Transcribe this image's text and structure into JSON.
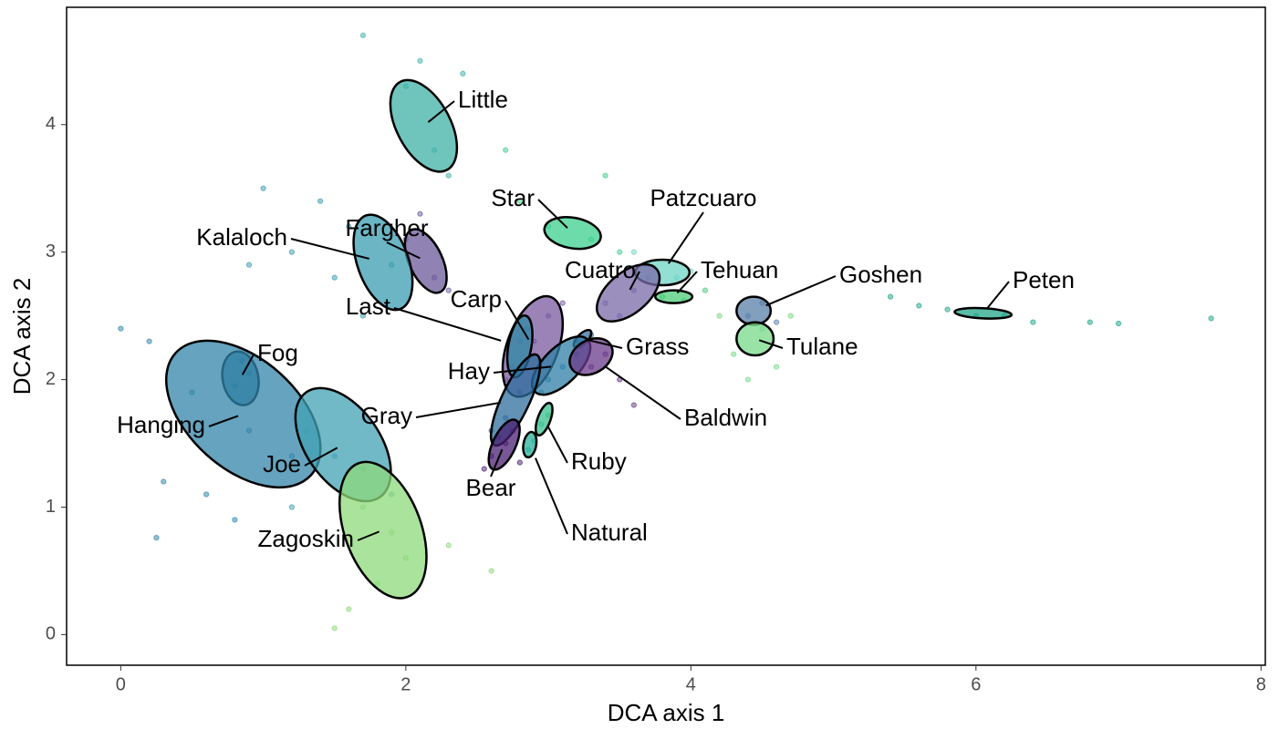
{
  "chart_data": {
    "type": "scatter",
    "xlabel": "DCA axis 1",
    "ylabel": "DCA axis 2",
    "xlim": [
      -0.38,
      8.03
    ],
    "ylim": [
      -0.24,
      4.92
    ],
    "xticks": [
      0,
      2,
      4,
      6,
      8
    ],
    "yticks": [
      0,
      1,
      2,
      3,
      4
    ],
    "grid": false,
    "groups": [
      {
        "name": "Little",
        "color": "#3fb2a6",
        "ellipse": {
          "x": 2.125,
          "y": 3.99,
          "rx": 0.35,
          "ry": 0.21,
          "angle": 62
        },
        "x": [
          2.0,
          2.2,
          2.1,
          2.4,
          1.7,
          2.3
        ],
        "y": [
          4.3,
          3.8,
          4.5,
          4.4,
          4.7,
          3.6
        ]
      },
      {
        "name": "Fargher",
        "color": "#6b5a9a",
        "ellipse": {
          "x": 2.14,
          "y": 2.93,
          "rx": 0.24,
          "ry": 0.13,
          "angle": 65
        },
        "x": [
          2.0,
          2.2,
          2.3,
          2.1
        ],
        "y": [
          3.1,
          2.8,
          2.7,
          3.3
        ]
      },
      {
        "name": "Kalaloch",
        "color": "#3a9cb0",
        "ellipse": {
          "x": 1.84,
          "y": 2.92,
          "rx": 0.35,
          "ry": 0.2,
          "angle": 70
        },
        "x": [
          1.4,
          1.6,
          1.9,
          1.2,
          1.7,
          1.5,
          0.9,
          1.0
        ],
        "y": [
          3.4,
          3.2,
          2.9,
          3.0,
          2.5,
          2.8,
          2.9,
          3.5
        ]
      },
      {
        "name": "Star",
        "color": "#3ccf8e",
        "ellipse": {
          "x": 3.17,
          "y": 3.15,
          "rx": 0.2,
          "ry": 0.12,
          "angle": 10
        },
        "x": [
          2.8,
          3.0,
          3.3,
          3.5,
          2.7,
          3.4
        ],
        "y": [
          3.4,
          3.2,
          3.1,
          3.0,
          3.8,
          3.6
        ]
      },
      {
        "name": "Patzcuaro",
        "color": "#6ed4c4",
        "ellipse": {
          "x": 3.8,
          "y": 2.84,
          "rx": 0.19,
          "ry": 0.1,
          "angle": 0
        },
        "x": [
          3.7,
          3.9,
          3.6,
          4.0
        ],
        "y": [
          2.9,
          2.8,
          3.0,
          2.85
        ]
      },
      {
        "name": "Tehuan",
        "color": "#4ccc7a",
        "ellipse": {
          "x": 3.88,
          "y": 2.65,
          "rx": 0.13,
          "ry": 0.05,
          "angle": 0
        },
        "x": [
          3.8,
          3.95,
          4.1
        ],
        "y": [
          2.65,
          2.62,
          2.7
        ]
      },
      {
        "name": "Cuatro",
        "color": "#7a6aa8",
        "ellipse": {
          "x": 3.56,
          "y": 2.68,
          "rx": 0.26,
          "ry": 0.16,
          "angle": -40
        },
        "x": [
          3.4,
          3.6,
          3.7,
          3.5
        ],
        "y": [
          2.6,
          2.7,
          2.8,
          2.5
        ]
      },
      {
        "name": "Goshen",
        "color": "#5a7fa8",
        "ellipse": {
          "x": 4.44,
          "y": 2.54,
          "rx": 0.12,
          "ry": 0.11,
          "angle": 0
        },
        "x": [
          4.4,
          4.5,
          4.6
        ],
        "y": [
          2.5,
          2.6,
          2.45
        ]
      },
      {
        "name": "Tulane",
        "color": "#78d98a",
        "ellipse": {
          "x": 4.45,
          "y": 2.32,
          "rx": 0.13,
          "ry": 0.13,
          "angle": 0
        },
        "x": [
          4.3,
          4.5,
          4.6,
          4.4,
          4.7,
          4.2
        ],
        "y": [
          2.2,
          2.4,
          2.1,
          2.0,
          2.5,
          2.5
        ]
      },
      {
        "name": "Peten",
        "color": "#22a587",
        "ellipse": {
          "x": 6.05,
          "y": 2.52,
          "rx": 0.2,
          "ry": 0.04,
          "angle": 3
        },
        "x": [
          5.6,
          5.8,
          6.0,
          6.2,
          6.4,
          6.8,
          7.0,
          7.65,
          5.4
        ],
        "y": [
          2.58,
          2.55,
          2.5,
          2.5,
          2.45,
          2.45,
          2.44,
          2.48,
          2.65
        ]
      },
      {
        "name": "Carp",
        "color": "#7a5aa0",
        "ellipse": {
          "x": 2.89,
          "y": 2.26,
          "rx": 0.37,
          "ry": 0.2,
          "angle": -70
        },
        "x": [
          2.7,
          2.9,
          3.0,
          2.8,
          3.1
        ],
        "y": [
          2.0,
          2.3,
          2.5,
          1.9,
          2.6
        ]
      },
      {
        "name": "Last",
        "color": "#2f8aa6",
        "ellipse": {
          "x": 2.8,
          "y": 2.26,
          "rx": 0.22,
          "ry": 0.09,
          "angle": -80
        },
        "x": [
          2.75,
          2.8,
          2.85
        ],
        "y": [
          2.1,
          2.3,
          2.4
        ]
      },
      {
        "name": "Grass",
        "color": "#3a6fa0",
        "ellipse": {
          "x": 3.24,
          "y": 2.32,
          "rx": 0.08,
          "ry": 0.04,
          "angle": -45
        },
        "x": [
          3.2,
          3.3
        ],
        "y": [
          2.3,
          2.35
        ]
      },
      {
        "name": "Hay",
        "color": "#2f7fa6",
        "ellipse": {
          "x": 3.09,
          "y": 2.11,
          "rx": 0.26,
          "ry": 0.14,
          "angle": -45
        },
        "x": [
          3.0,
          3.1,
          3.2,
          2.95
        ],
        "y": [
          2.0,
          2.1,
          2.2,
          1.9
        ]
      },
      {
        "name": "Baldwin",
        "color": "#6a3a8a",
        "ellipse": {
          "x": 3.3,
          "y": 2.18,
          "rx": 0.16,
          "ry": 0.13,
          "angle": -30
        },
        "x": [
          3.3,
          3.4,
          3.5,
          3.2,
          3.6
        ],
        "y": [
          2.1,
          2.2,
          2.0,
          2.3,
          1.8
        ]
      },
      {
        "name": "Gray",
        "color": "#2e6d9e",
        "ellipse": {
          "x": 2.77,
          "y": 1.84,
          "rx": 0.35,
          "ry": 0.11,
          "angle": -65
        },
        "x": [
          2.7,
          2.8,
          2.9,
          2.6
        ],
        "y": [
          1.7,
          1.9,
          2.0,
          1.6
        ]
      },
      {
        "name": "Bear",
        "color": "#4a1f72",
        "ellipse": {
          "x": 2.69,
          "y": 1.49,
          "rx": 0.19,
          "ry": 0.09,
          "angle": -65
        },
        "x": [
          2.6,
          2.7,
          2.75,
          2.55,
          2.8,
          2.65
        ],
        "y": [
          1.4,
          1.5,
          1.6,
          1.3,
          1.35,
          1.55
        ]
      },
      {
        "name": "Ruby",
        "color": "#38c08c",
        "ellipse": {
          "x": 2.97,
          "y": 1.69,
          "rx": 0.12,
          "ry": 0.05,
          "angle": -70
        },
        "x": [
          2.95,
          3.0
        ],
        "y": [
          1.65,
          1.72
        ]
      },
      {
        "name": "Natural",
        "color": "#2ab09a",
        "ellipse": {
          "x": 2.87,
          "y": 1.49,
          "rx": 0.09,
          "ry": 0.05,
          "angle": -80
        },
        "x": [
          2.86,
          2.9
        ],
        "y": [
          1.45,
          1.52
        ]
      },
      {
        "name": "Fog",
        "color": "#276f96",
        "ellipse": {
          "x": 0.84,
          "y": 2.01,
          "rx": 0.19,
          "ry": 0.14,
          "angle": 80
        },
        "x": [
          0.8,
          0.9,
          0.85
        ],
        "y": [
          1.95,
          2.05,
          2.15
        ]
      },
      {
        "name": "Hanging",
        "color": "#3284a8",
        "ellipse": {
          "x": 0.86,
          "y": 1.73,
          "rx": 0.64,
          "ry": 0.43,
          "angle": 42
        },
        "x": [
          0.2,
          0.5,
          0.9,
          1.2,
          0.3,
          0.6,
          0.0,
          0.8,
          0.25
        ],
        "y": [
          2.3,
          1.9,
          1.6,
          1.4,
          1.2,
          1.1,
          2.4,
          0.9,
          0.76
        ]
      },
      {
        "name": "Joe",
        "color": "#42a2b4",
        "ellipse": {
          "x": 1.56,
          "y": 1.49,
          "rx": 0.45,
          "ry": 0.29,
          "angle": 55
        },
        "x": [
          1.3,
          1.5,
          1.7,
          1.9,
          1.2
        ],
        "y": [
          1.6,
          1.4,
          1.3,
          1.1,
          1.0
        ]
      },
      {
        "name": "Zagoskin",
        "color": "#8ed97a",
        "ellipse": {
          "x": 1.84,
          "y": 0.82,
          "rx": 0.5,
          "ry": 0.3,
          "angle": 70
        },
        "x": [
          1.7,
          1.9,
          2.0,
          1.8,
          1.6,
          2.3,
          2.6,
          1.5
        ],
        "y": [
          1.0,
          0.8,
          0.6,
          0.4,
          0.2,
          0.7,
          0.5,
          0.05
        ]
      }
    ]
  }
}
